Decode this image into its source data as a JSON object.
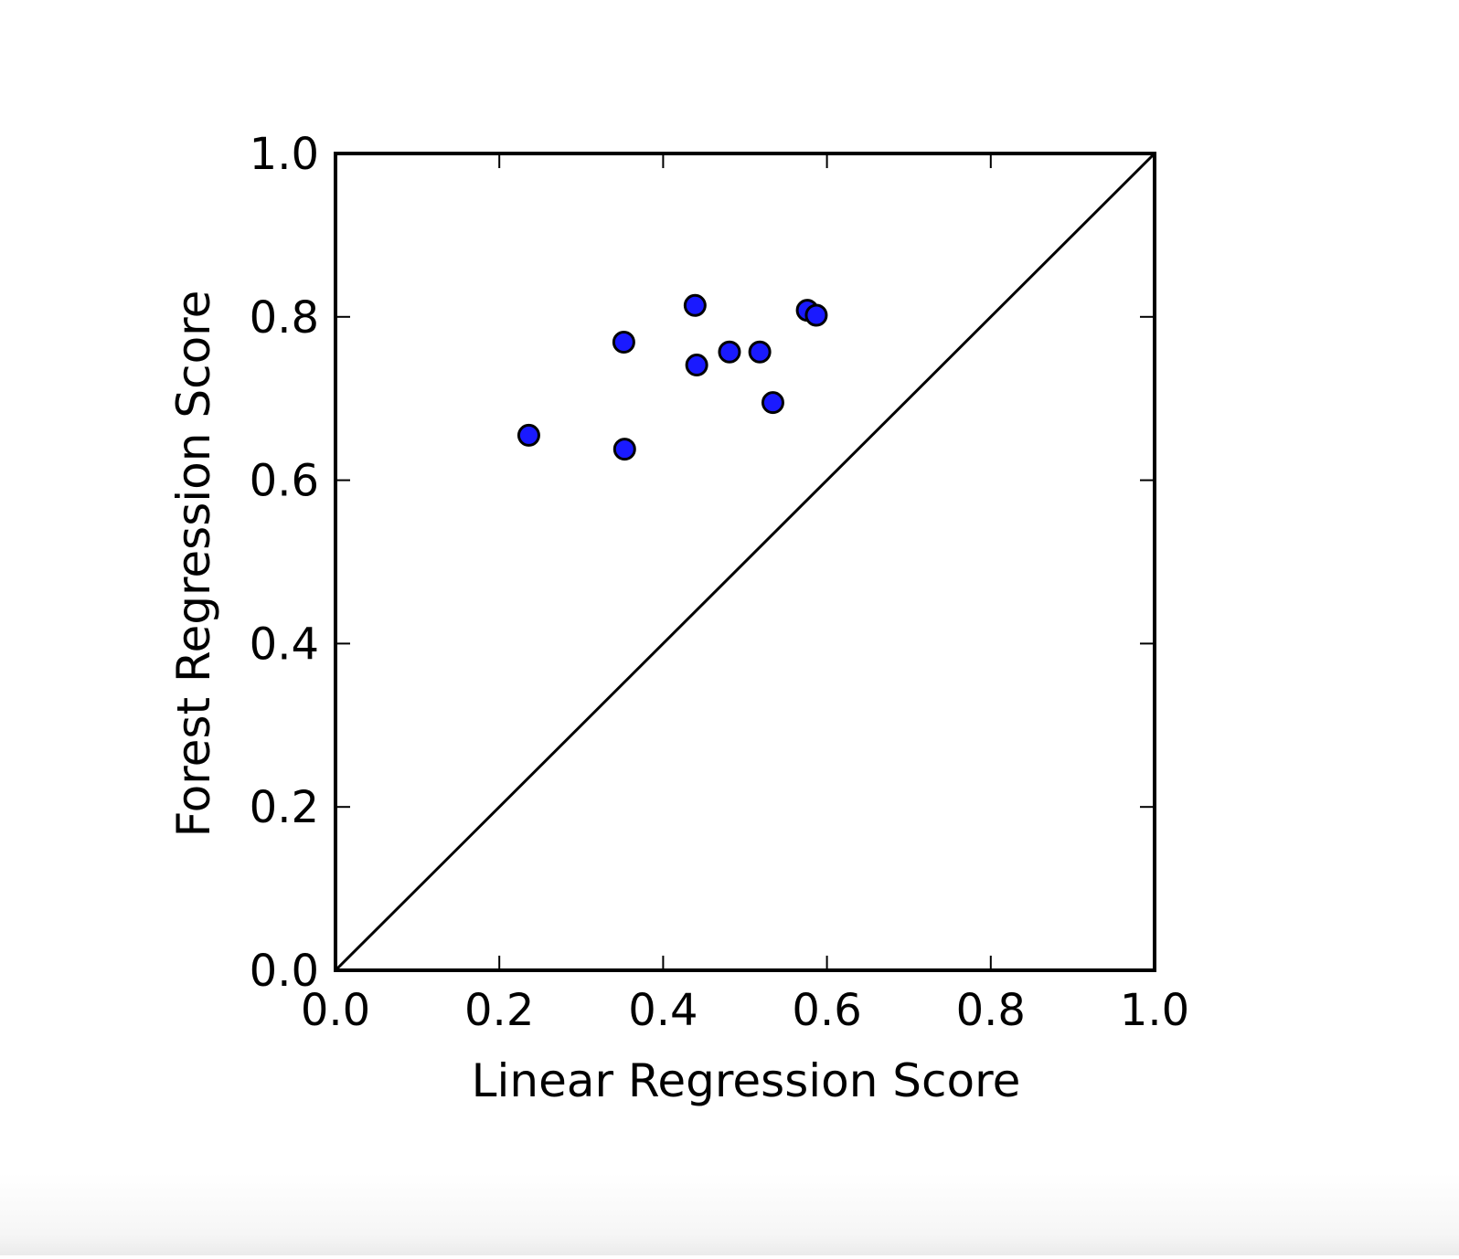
{
  "chart_data": {
    "type": "scatter",
    "title": "",
    "xlabel": "Linear Regression Score",
    "ylabel": "Forest Regression Score",
    "xlim": [
      0.0,
      1.0
    ],
    "ylim": [
      0.0,
      1.0
    ],
    "xticks": [
      "0.0",
      "0.2",
      "0.4",
      "0.6",
      "0.8",
      "1.0"
    ],
    "yticks": [
      "0.0",
      "0.2",
      "0.4",
      "0.6",
      "0.8",
      "1.0"
    ],
    "grid": false,
    "legend": "none",
    "reference_line": {
      "from": [
        0.0,
        0.0
      ],
      "to": [
        1.0,
        1.0
      ],
      "color": "#000000"
    },
    "marker_color": "#1a1aff",
    "marker_edge_color": "#000000",
    "series": [
      {
        "points": [
          {
            "x": 0.236,
            "y": 0.655
          },
          {
            "x": 0.352,
            "y": 0.769
          },
          {
            "x": 0.353,
            "y": 0.638
          },
          {
            "x": 0.439,
            "y": 0.814
          },
          {
            "x": 0.441,
            "y": 0.741
          },
          {
            "x": 0.481,
            "y": 0.757
          },
          {
            "x": 0.518,
            "y": 0.757
          },
          {
            "x": 0.534,
            "y": 0.695
          },
          {
            "x": 0.576,
            "y": 0.808
          },
          {
            "x": 0.587,
            "y": 0.802
          }
        ]
      }
    ]
  }
}
